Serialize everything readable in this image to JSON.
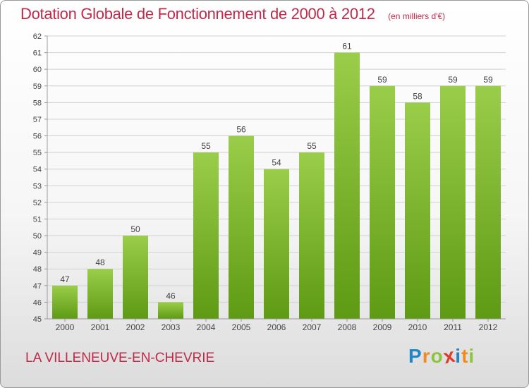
{
  "chart_data": {
    "type": "bar",
    "title": "Dotation Globale de Fonctionnement de 2000 à 2012",
    "subtitle": "(en milliers d'€)",
    "categories": [
      "2000",
      "2001",
      "2002",
      "2003",
      "2004",
      "2005",
      "2006",
      "2007",
      "2008",
      "2009",
      "2010",
      "2011",
      "2012"
    ],
    "values": [
      47,
      48,
      50,
      46,
      55,
      56,
      54,
      55,
      61,
      59,
      58,
      59,
      59
    ],
    "value_labels": [
      "47",
      "48",
      "50",
      "46",
      "55",
      "56",
      "54",
      "55",
      "61",
      "59",
      "58",
      "59",
      "59"
    ],
    "ylim": [
      45,
      62
    ],
    "yticks": [
      "45",
      "46",
      "47",
      "48",
      "49",
      "50",
      "51",
      "52",
      "53",
      "54",
      "55",
      "56",
      "57",
      "58",
      "59",
      "60",
      "61",
      "62"
    ],
    "xlabel": "",
    "ylabel": "",
    "grid": true,
    "colors": {
      "bar_top": "#9acd4a",
      "bar_bottom": "#5e9a14",
      "title": "#c0294a"
    }
  },
  "location": "LA VILLENEUVE-EN-CHEVRIE",
  "brand": {
    "letters": [
      "P",
      "r",
      "o",
      "x",
      "i",
      "t",
      "i"
    ],
    "colors": [
      "#1f86c8",
      "#f08c1e",
      "#8cc43c",
      "#e03a2e",
      "#1f86c8",
      "#f08c1e",
      "#8cc43c"
    ]
  }
}
